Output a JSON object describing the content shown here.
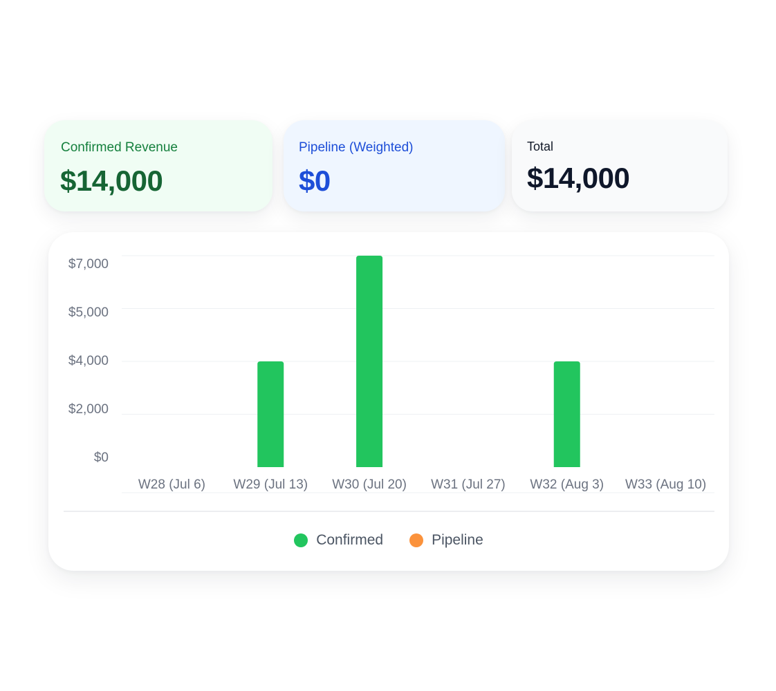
{
  "cards": {
    "confirmed": {
      "label": "Confirmed Revenue",
      "value": "$14,000"
    },
    "pipeline": {
      "label": "Pipeline (Weighted)",
      "value": "$0"
    },
    "total": {
      "label": "Total",
      "value": "$14,000"
    }
  },
  "colors": {
    "confirmed": "#22c55e",
    "pipeline": "#fb923c",
    "grid": "#eef0f3",
    "tick_text": "#6b7280"
  },
  "chart_data": {
    "type": "bar",
    "categories": [
      "W28 (Jul 6)",
      "W29 (Jul 13)",
      "W30 (Jul 20)",
      "W31 (Jul 27)",
      "W32 (Aug 3)",
      "W33 (Aug 10)"
    ],
    "series": [
      {
        "name": "Confirmed",
        "values": [
          0,
          3500,
          7000,
          0,
          3500,
          0
        ]
      },
      {
        "name": "Pipeline",
        "values": [
          0,
          0,
          0,
          0,
          0,
          0
        ]
      }
    ],
    "y_tick_labels": [
      "$0",
      "$2,000",
      "$4,000",
      "$5,000",
      "$7,000"
    ],
    "ylim": [
      0,
      7000
    ],
    "grid": true,
    "legend_position": "bottom-center",
    "title": "",
    "xlabel": "",
    "ylabel": ""
  }
}
